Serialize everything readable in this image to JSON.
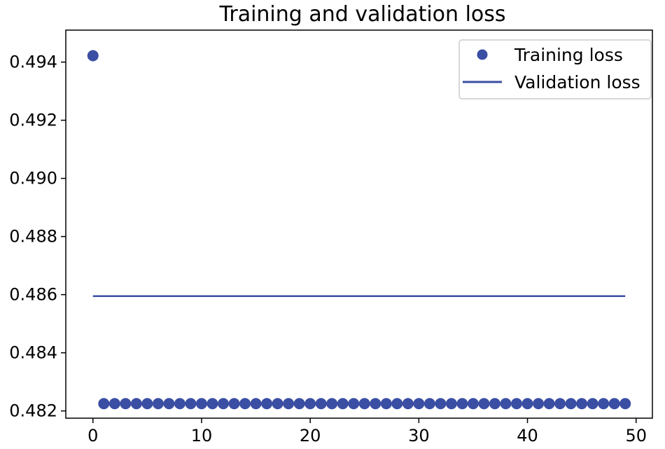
{
  "chart_data": {
    "type": "scatter",
    "title": "Training and validation loss",
    "xlabel": "",
    "ylabel": "",
    "xlim": [
      -2.5,
      51.5
    ],
    "ylim": [
      0.48175,
      0.4951
    ],
    "grid": false,
    "legend_position": "top-right",
    "x_ticks": [
      0,
      10,
      20,
      30,
      40,
      50
    ],
    "x_tick_labels": [
      "0",
      "10",
      "20",
      "30",
      "40",
      "50"
    ],
    "y_ticks": [
      0.482,
      0.484,
      0.486,
      0.488,
      0.49,
      0.492,
      0.494
    ],
    "y_tick_labels": [
      "0.482",
      "0.484",
      "0.486",
      "0.488",
      "0.490",
      "0.492",
      "0.494"
    ],
    "series": [
      {
        "name": "Training loss",
        "style": "dots",
        "color": "#3a4ea3",
        "x": [
          0,
          1,
          2,
          3,
          4,
          5,
          6,
          7,
          8,
          9,
          10,
          11,
          12,
          13,
          14,
          15,
          16,
          17,
          18,
          19,
          20,
          21,
          22,
          23,
          24,
          25,
          26,
          27,
          28,
          29,
          30,
          31,
          32,
          33,
          34,
          35,
          36,
          37,
          38,
          39,
          40,
          41,
          42,
          43,
          44,
          45,
          46,
          47,
          48,
          49
        ],
        "values": [
          0.49422,
          0.48225,
          0.48225,
          0.48225,
          0.48225,
          0.48225,
          0.48225,
          0.48225,
          0.48225,
          0.48225,
          0.48225,
          0.48225,
          0.48225,
          0.48225,
          0.48225,
          0.48225,
          0.48225,
          0.48225,
          0.48225,
          0.48225,
          0.48225,
          0.48225,
          0.48225,
          0.48225,
          0.48225,
          0.48225,
          0.48225,
          0.48225,
          0.48225,
          0.48225,
          0.48225,
          0.48225,
          0.48225,
          0.48225,
          0.48225,
          0.48225,
          0.48225,
          0.48225,
          0.48225,
          0.48225,
          0.48225,
          0.48225,
          0.48225,
          0.48225,
          0.48225,
          0.48225,
          0.48225,
          0.48225,
          0.48225,
          0.48225
        ]
      },
      {
        "name": "Validation loss",
        "style": "line",
        "color": "#3a4ea3",
        "x": [
          0,
          49
        ],
        "values": [
          0.48595,
          0.48595
        ]
      }
    ]
  }
}
